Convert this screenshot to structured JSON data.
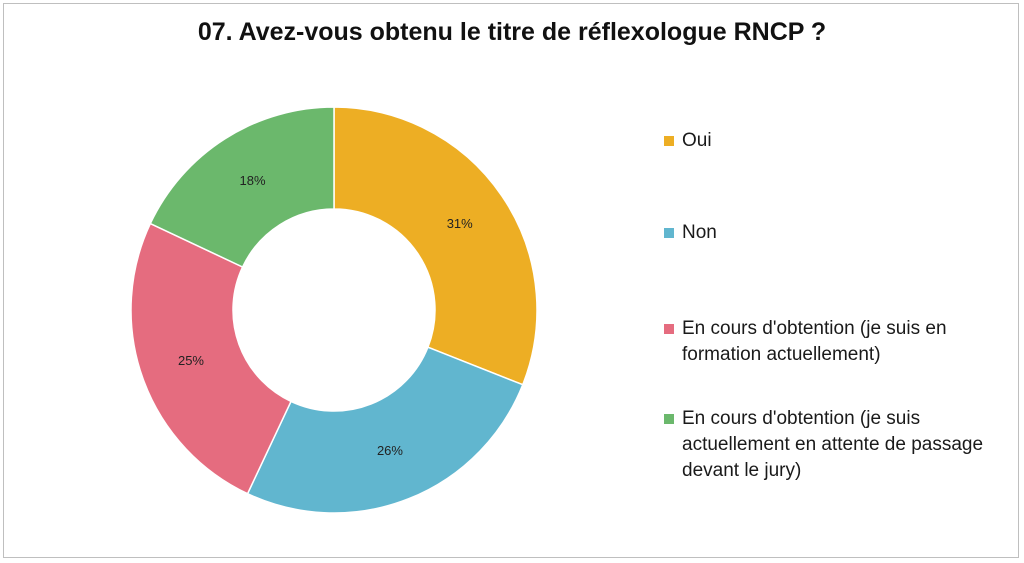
{
  "chart_data": {
    "type": "donut",
    "title": "07. Avez-vous obtenu le titre de réflexologue RNCP ?",
    "legend_position": "right",
    "slices": [
      {
        "label": "Oui",
        "value": 31,
        "display": "31%",
        "color": "#EDAE24"
      },
      {
        "label": "Non",
        "value": 26,
        "display": "26%",
        "color": "#61B6CF"
      },
      {
        "label": "En cours d'obtention (je suis en formation actuellement)",
        "value": 25,
        "display": "25%",
        "color": "#E56C7F"
      },
      {
        "label": "En cours d'obtention (je suis actuellement en attente de passage devant le jury)",
        "value": 18,
        "display": "18%",
        "color": "#6BB86C"
      }
    ]
  }
}
